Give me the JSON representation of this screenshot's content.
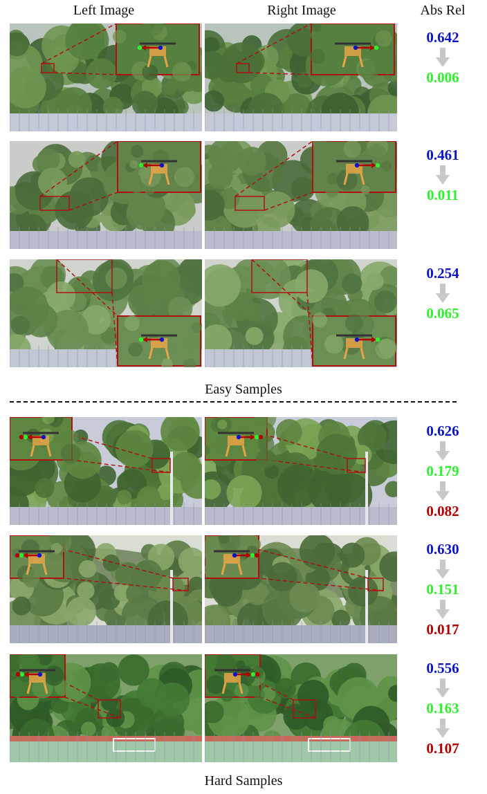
{
  "headers": {
    "left": "Left Image",
    "right": "Right Image",
    "metric": "Abs Rel"
  },
  "captions": {
    "easy": "Easy Samples",
    "hard": "Hard Samples"
  },
  "colors": {
    "blue": "#0b13c9",
    "green": "#2ef02e",
    "red": "#b00000",
    "box": "#b01010",
    "arrow_gray": "#c8c8c8"
  },
  "samples": [
    {
      "group": "easy",
      "scene": "trees-fence",
      "values": [
        "0.642",
        "0.006"
      ]
    },
    {
      "group": "easy",
      "scene": "trees-drone",
      "values": [
        "0.461",
        "0.011"
      ]
    },
    {
      "group": "easy",
      "scene": "trees-close",
      "values": [
        "0.254",
        "0.065"
      ]
    },
    {
      "group": "hard",
      "scene": "trees-pole",
      "values": [
        "0.626",
        "0.179",
        "0.082"
      ]
    },
    {
      "group": "hard",
      "scene": "hill-trees",
      "values": [
        "0.630",
        "0.151",
        "0.017"
      ]
    },
    {
      "group": "hard",
      "scene": "field-goal",
      "values": [
        "0.556",
        "0.163",
        "0.107"
      ]
    }
  ]
}
